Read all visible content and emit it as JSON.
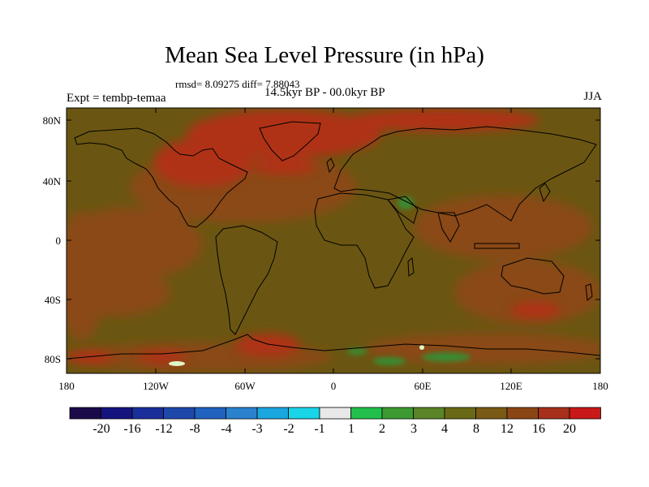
{
  "title": "Mean Sea Level Pressure (in hPa)",
  "stats": "rmsd= 8.09275 diff= 7.88043",
  "experiment": "Expt = tembp-temaa",
  "period": "14.5kyr BP - 00.0kyr BP",
  "season": "JJA",
  "map": {
    "lat_ticks": [
      "80N",
      "40N",
      "0",
      "40S",
      "80S"
    ],
    "lon_ticks": [
      "180",
      "120W",
      "60W",
      "0",
      "60E",
      "120E",
      "180"
    ]
  },
  "colorbar": {
    "labels": [
      "-20",
      "-16",
      "-12",
      "-8",
      "-4",
      "-3",
      "-2",
      "-1",
      "1",
      "2",
      "3",
      "4",
      "8",
      "12",
      "16",
      "20"
    ],
    "colors": [
      "#1a0a4a",
      "#15147e",
      "#1a2e9c",
      "#1f48ac",
      "#1f62c0",
      "#2a82cf",
      "#1aa6df",
      "#18d6e8",
      "#e8e8e8",
      "#22c04a",
      "#3c9a32",
      "#5a8426",
      "#6a6a16",
      "#7a5a14",
      "#8c4616",
      "#a6301a",
      "#c81818"
    ]
  },
  "fills": {
    "base": "#6a5612",
    "warm": "#8a4a16",
    "hot": "#b03018",
    "green": "#3a8a30",
    "bright": "#dff6c8",
    "coast": "#000000"
  }
}
